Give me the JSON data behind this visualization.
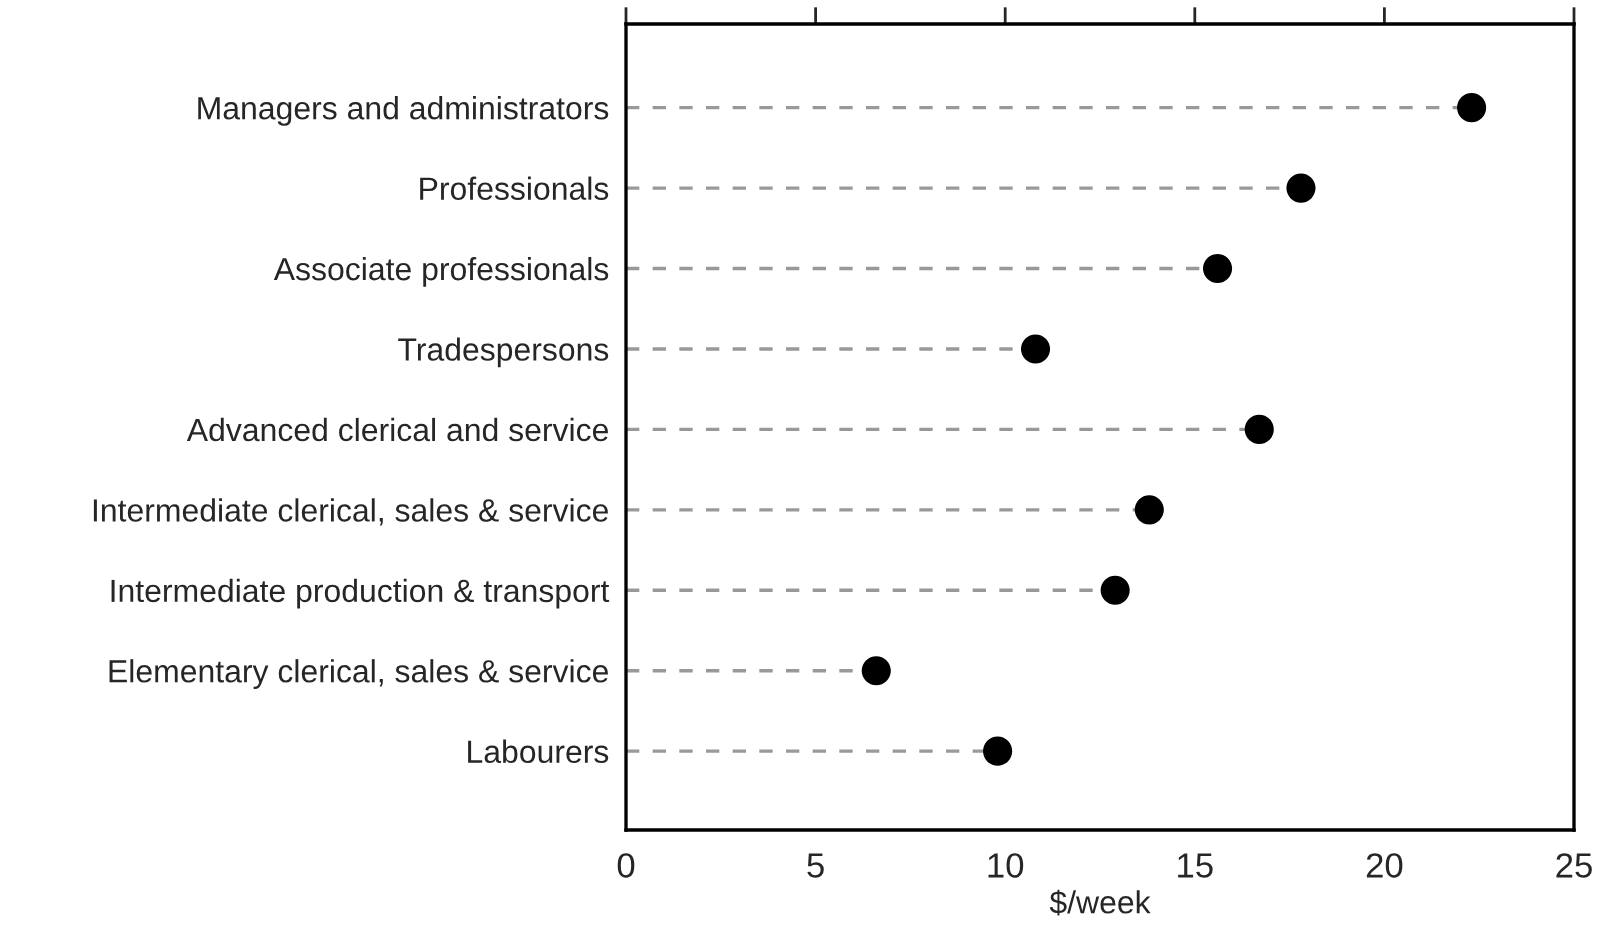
{
  "chart_data": {
    "type": "lollipop",
    "orientation": "horizontal",
    "xlabel": "$/week",
    "categories": [
      "Managers and administrators",
      "Professionals",
      "Associate professionals",
      "Tradespersons",
      "Advanced clerical and service",
      "Intermediate clerical, sales & service",
      "Intermediate production & transport",
      "Elementary clerical, sales & service",
      "Labourers"
    ],
    "values": [
      22.3,
      17.8,
      15.6,
      10.8,
      16.7,
      13.8,
      12.9,
      6.6,
      9.8
    ],
    "color": "#000000",
    "line_style": "dashed",
    "marker": "circle",
    "xlim": [
      0,
      25
    ],
    "xticks": [
      0,
      5,
      10,
      15,
      20,
      25
    ]
  }
}
